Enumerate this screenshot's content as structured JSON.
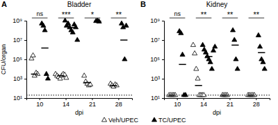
{
  "chart_data": [
    {
      "type": "scatter",
      "panel_label": "A",
      "title": "Bladder",
      "x_label": "dpi",
      "y_label": "CFU/organ",
      "categories": [
        "10",
        "14",
        "21",
        "28"
      ],
      "series": [
        {
          "name": "Veh/UPEC",
          "color": "#000000",
          "marker": "triangle-open",
          "values": [
            [
              120000,
              250000,
              2000,
              4000,
              3000
            ],
            [
              3000,
              2000,
              1500,
              1000,
              2000,
              3000,
              2500,
              1200
            ],
            [
              2000,
              500,
              300,
              200,
              250
            ],
            [
              300,
              200,
              150,
              250,
              200
            ]
          ],
          "means": [
            3000,
            2000,
            400,
            200
          ]
        },
        {
          "name": "TC/UPEC",
          "color": "#000000",
          "marker": "triangle",
          "values": [
            [
              500000000,
              300000000,
              100000000,
              3000,
              1000
            ],
            [
              1000000000,
              300000000,
              500000000,
              200000000,
              100000000,
              60000000,
              400000000,
              200000000,
              10000000
            ],
            [
              900000000,
              1000000000,
              800000000
            ],
            [
              500000000,
              200000000,
              100000,
              300000000
            ]
          ],
          "means": [
            1500000,
            200000000,
            900000000,
            10000000
          ]
        }
      ],
      "significance": [
        "ns",
        "***",
        "*",
        "**"
      ],
      "detection_limit": 20,
      "log": "y",
      "grid": false,
      "legend": "bottom",
      "ylim": [
        10,
        1000000000
      ],
      "yticks": [
        {
          "value": 10,
          "label": "10¹"
        },
        {
          "value": 1000,
          "label": "10³"
        },
        {
          "value": 100000,
          "label": "10⁵"
        },
        {
          "value": 10000000,
          "label": "10⁷"
        },
        {
          "value": 1000000000,
          "label": "10⁹"
        }
      ]
    },
    {
      "type": "scatter",
      "panel_label": "B",
      "title": "Kidney",
      "x_label": "dpi",
      "categories": [
        "10",
        "14",
        "21",
        "28"
      ],
      "series": [
        {
          "name": "Veh/UPEC",
          "color": "#000000",
          "marker": "triangle-open",
          "values": [
            [
              20,
              20,
              20,
              20,
              20
            ],
            [
              3000000,
              400000,
              10000,
              1000,
              20,
              20,
              20,
              20
            ],
            [
              20,
              20,
              20,
              20
            ],
            [
              20,
              20,
              20,
              20,
              20
            ]
          ],
          "means": [
            20,
            200,
            20,
            20
          ]
        },
        {
          "name": "TC/UPEC",
          "color": "#000000",
          "marker": "triangle",
          "values": [
            [
              80000000,
              50000000,
              300000,
              20,
              20
            ],
            [
              3000000,
              1000000,
              500000,
              200000,
              100000,
              50000,
              10000,
              800000,
              2000000
            ],
            [
              100000000,
              10000000,
              100000,
              10000
            ],
            [
              30000000,
              2000000,
              100000,
              50000,
              10000
            ]
          ],
          "means": [
            30000,
            200000,
            3000000,
            500000
          ]
        }
      ],
      "significance": [
        "ns",
        "**",
        "**",
        "**"
      ],
      "detection_limit": 20,
      "log": "y",
      "grid": false,
      "ylim": [
        10,
        1000000000
      ],
      "yticks": [
        {
          "value": 10,
          "label": "10¹"
        },
        {
          "value": 1000,
          "label": "10³"
        },
        {
          "value": 100000,
          "label": "10⁵"
        },
        {
          "value": 10000000,
          "label": "10⁷"
        },
        {
          "value": 1000000000,
          "label": "10⁹"
        }
      ]
    }
  ]
}
